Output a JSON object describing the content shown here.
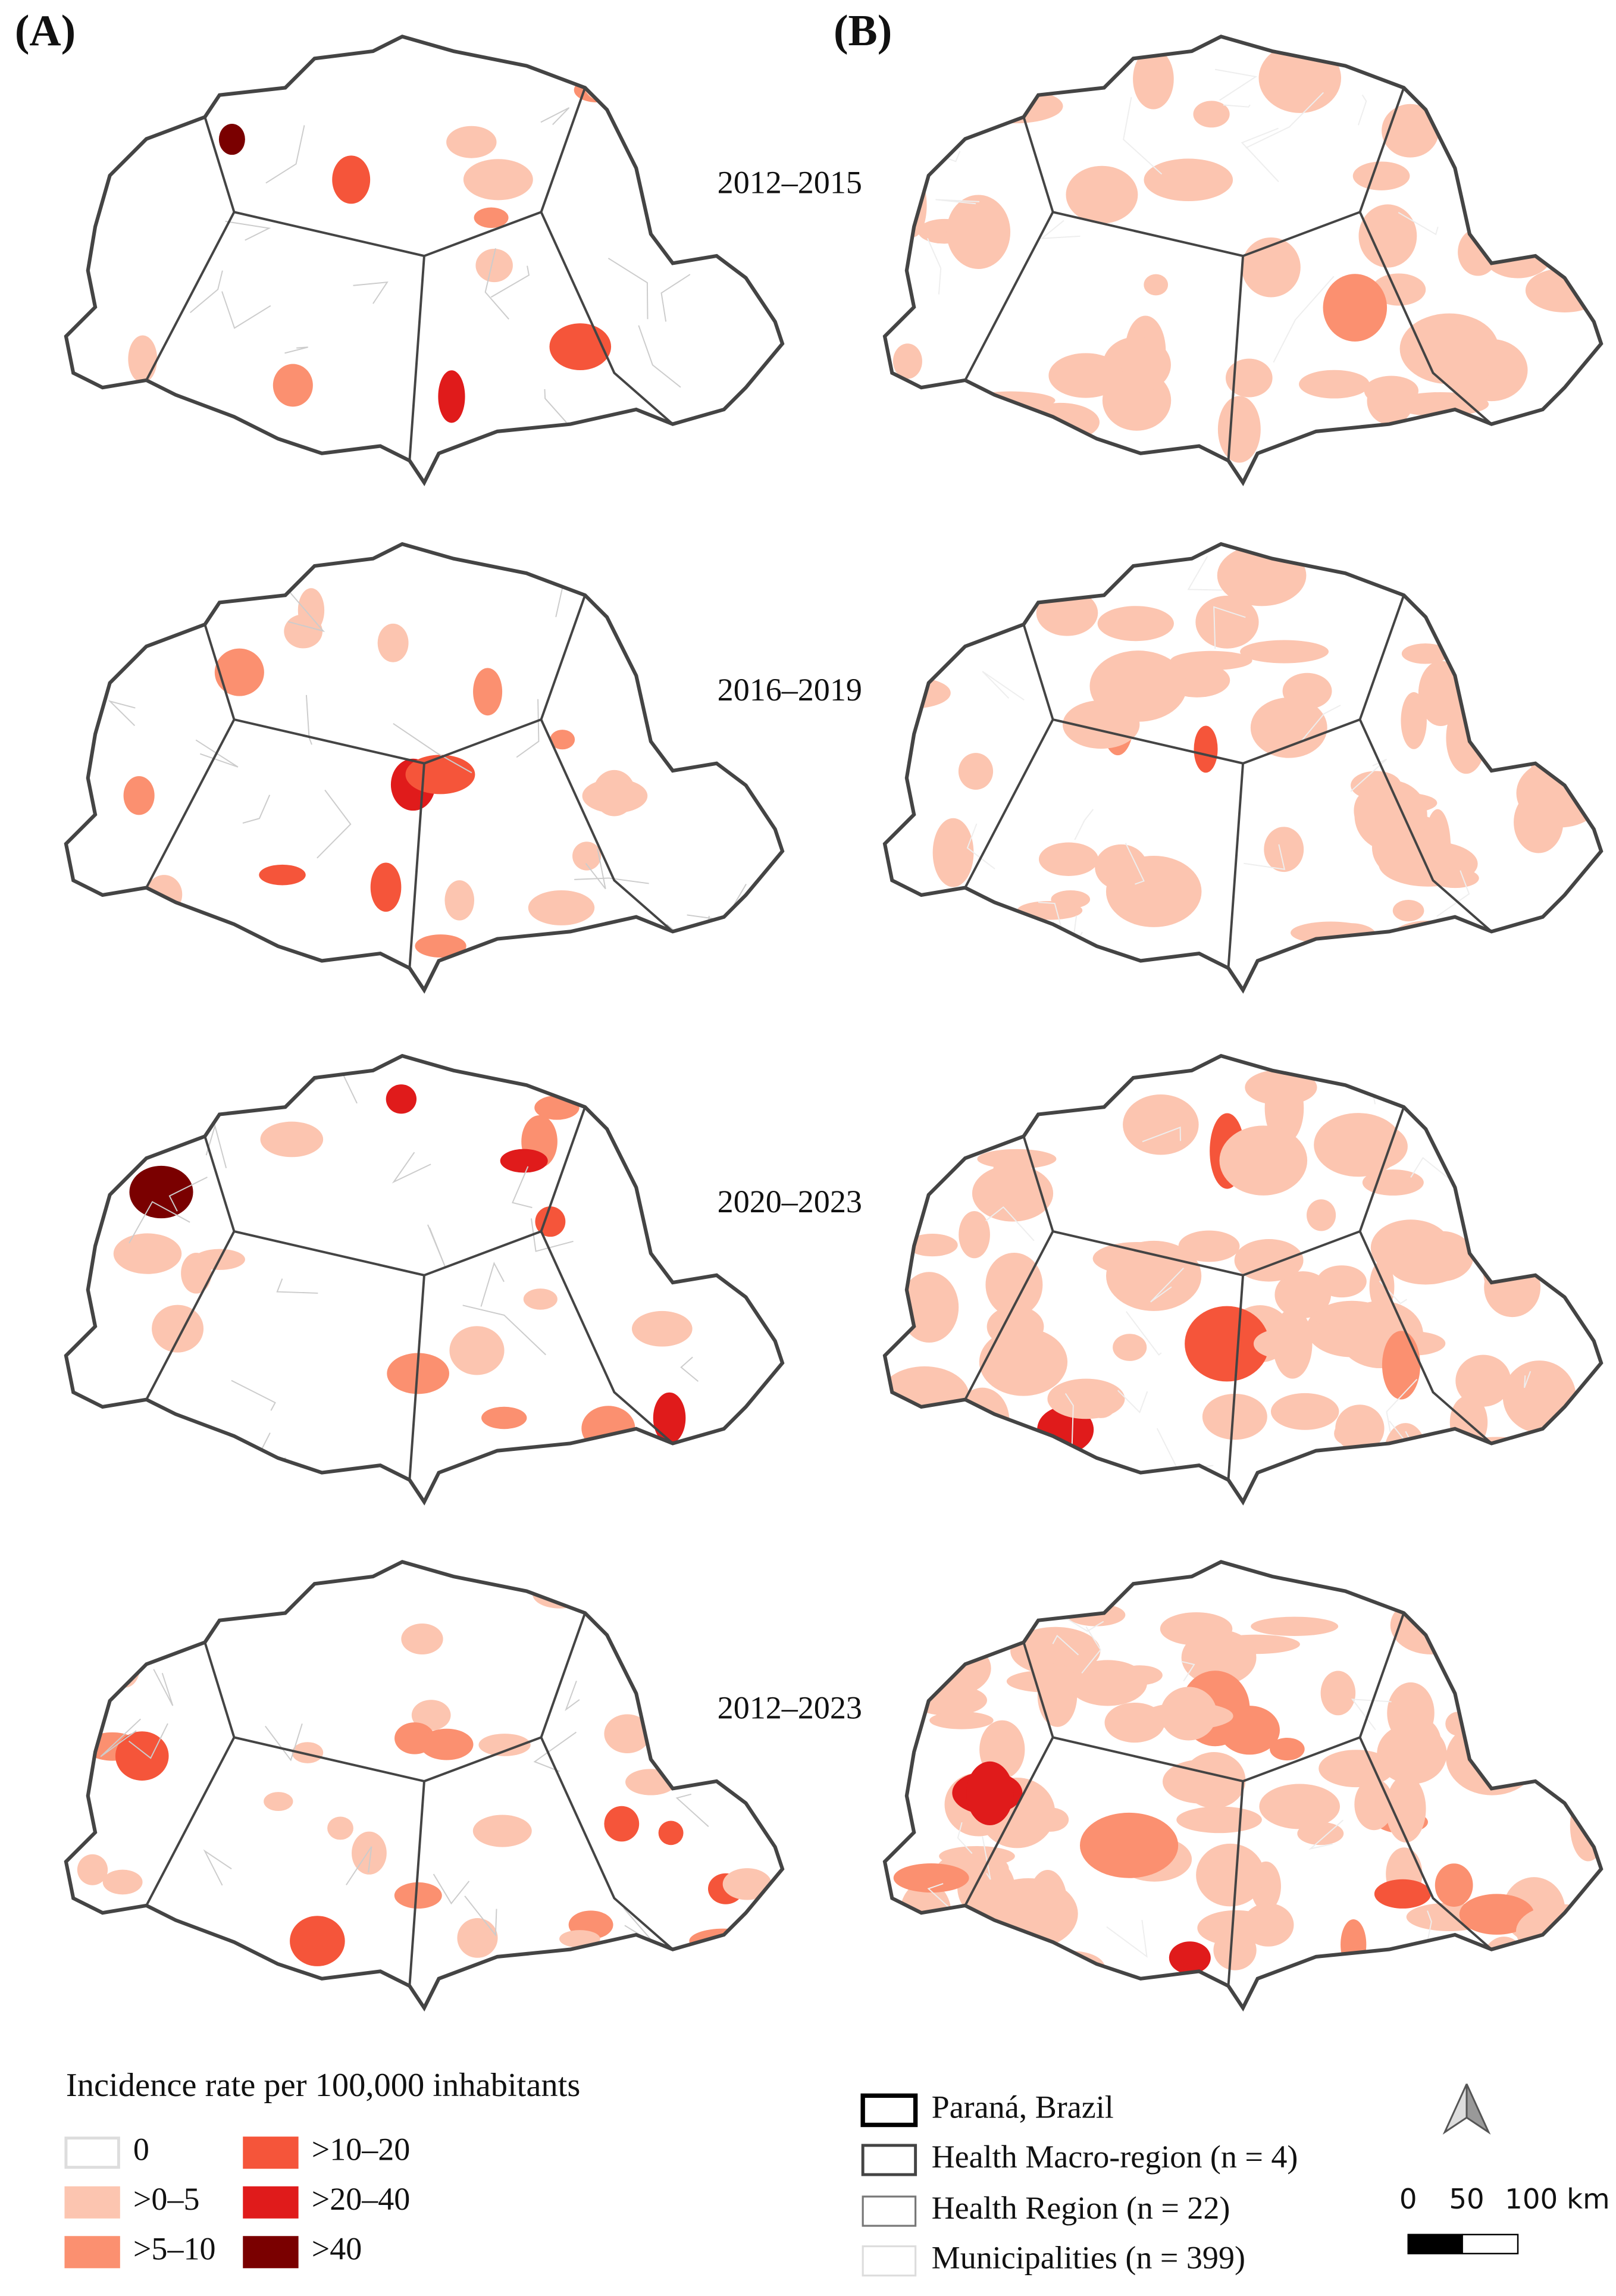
{
  "panels": [
    {
      "label": "(A)"
    },
    {
      "label": "(B)"
    }
  ],
  "periods": [
    "2012–2015",
    "2016–2019",
    "2020–2023",
    "2012–2023"
  ],
  "legend": {
    "title": "Incidence rate per 100,000 inhabitants",
    "classes": [
      {
        "label": "0",
        "color": "#ffffff"
      },
      {
        "label": ">0–5",
        "color": "#fcc5b0"
      },
      {
        "label": ">5–10",
        "color": "#fb9070"
      },
      {
        "label": ">10–20",
        "color": "#f5553a"
      },
      {
        "label": ">20–40",
        "color": "#e01b1b"
      },
      {
        "label": ">40",
        "color": "#7a0000"
      }
    ]
  },
  "boundaries": [
    {
      "label": "Paraná, Brazil"
    },
    {
      "label": "Health Macro-region (n = 4)"
    },
    {
      "label": "Health Region (n = 22)"
    },
    {
      "label": "Municipalities (n = 399)"
    }
  ],
  "scale_bar": {
    "labels": [
      "0",
      "50",
      "100 km"
    ]
  }
}
